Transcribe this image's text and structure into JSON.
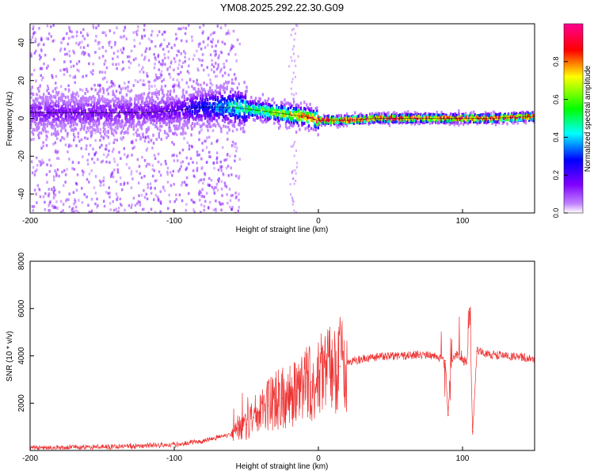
{
  "title": "YM08.2025.292.22.30.G09",
  "spectrogram": {
    "type": "heatmap",
    "xlabel": "Height of straight line (km)",
    "ylabel": "Frequency (Hz)",
    "xlim": [
      -200,
      150
    ],
    "ylim": [
      -50,
      50
    ],
    "xticks": [
      -200,
      -100,
      0,
      100
    ],
    "yticks": [
      -40,
      -20,
      0,
      20,
      40
    ],
    "colorbar": {
      "label": "Normalized spectral amplitude",
      "range": [
        0.0,
        1.0
      ],
      "ticks": [
        0.0,
        0.2,
        0.4,
        0.6,
        0.8
      ],
      "tick_labels": [
        "0.0",
        "0.2",
        "0.4",
        "0.6",
        "0.8"
      ],
      "colormap": [
        "#ffffff",
        "#8000ff",
        "#0000ff",
        "#00ffff",
        "#00ff00",
        "#ffff00",
        "#ff0000",
        "#ff00a0"
      ]
    },
    "ridge": {
      "height_km": [
        -200,
        -150,
        -120,
        -100,
        -80,
        -60,
        -50,
        -40,
        -30,
        -20,
        -10,
        0,
        20,
        40,
        60,
        80,
        100,
        120,
        150
      ],
      "frequency_hz": [
        3,
        3,
        3,
        4,
        6,
        6,
        5,
        4,
        3,
        2,
        1,
        -1,
        -1,
        0,
        0,
        0,
        0,
        0,
        1
      ],
      "amplitude": [
        0.15,
        0.15,
        0.15,
        0.18,
        0.3,
        0.45,
        0.55,
        0.6,
        0.65,
        0.75,
        0.85,
        0.95,
        0.95,
        0.95,
        0.95,
        0.95,
        0.95,
        0.95,
        0.9
      ]
    }
  },
  "snr": {
    "type": "line",
    "xlabel": "Height of straight line (km)",
    "ylabel": "SNR (10 * v/v)",
    "xlim": [
      -200,
      150
    ],
    "ylim": [
      0,
      8000
    ],
    "xticks": [
      -200,
      -100,
      0,
      100
    ],
    "yticks": [
      2000,
      4000,
      6000,
      8000
    ],
    "color": "#ee3333",
    "x": [
      -200,
      -150,
      -120,
      -100,
      -80,
      -70,
      -60,
      -55,
      -50,
      -45,
      -40,
      -35,
      -30,
      -25,
      -20,
      -15,
      -10,
      -5,
      0,
      5,
      10,
      15,
      20,
      25,
      30,
      40,
      50,
      60,
      70,
      80,
      85,
      88,
      90,
      92,
      95,
      100,
      103,
      105,
      107,
      110,
      120,
      130,
      140,
      150
    ],
    "y": [
      100,
      150,
      200,
      250,
      400,
      550,
      700,
      900,
      1100,
      1400,
      1600,
      1900,
      2100,
      2200,
      2300,
      2500,
      2700,
      2900,
      3100,
      3250,
      3400,
      3550,
      3700,
      3800,
      3850,
      3950,
      4000,
      4000,
      4050,
      4000,
      3900,
      3800,
      1500,
      3600,
      4100,
      3900,
      3700,
      6000,
      800,
      4200,
      4050,
      4000,
      3950,
      3850
    ]
  }
}
